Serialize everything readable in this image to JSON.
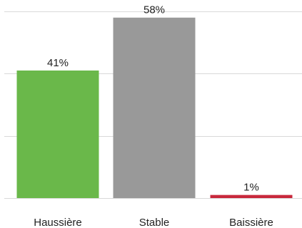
{
  "chart_data": {
    "type": "bar",
    "categories": [
      "Haussière",
      "Stable",
      "Baissière"
    ],
    "values": [
      41,
      58,
      1
    ],
    "value_labels": [
      "41%",
      "58%",
      "1%"
    ],
    "ylim": [
      0,
      60
    ],
    "grid": true,
    "title": "",
    "xlabel": "",
    "ylabel": "",
    "colors": [
      "#6ab84a",
      "#999999",
      "#c8283c"
    ],
    "gridline_color": "#d9d9d9"
  }
}
